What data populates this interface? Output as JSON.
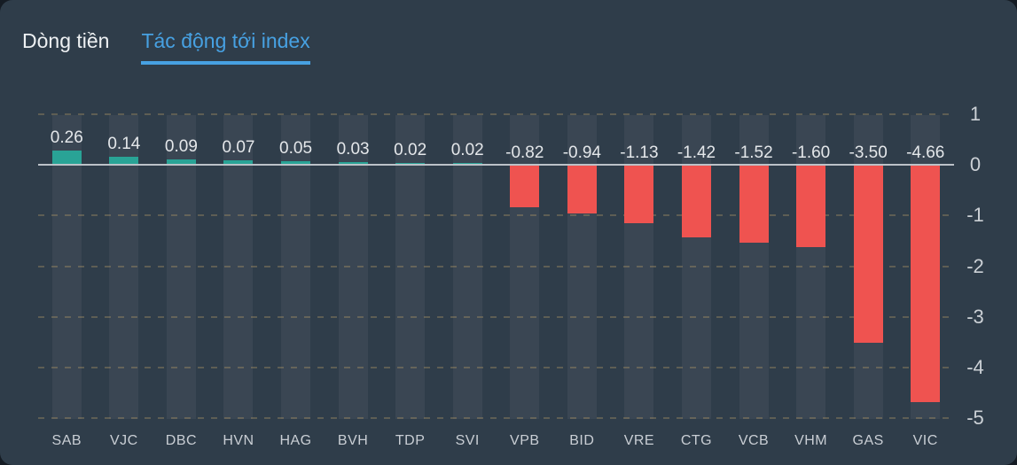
{
  "tabs": {
    "items": [
      {
        "label": "Dòng tiền",
        "active": false
      },
      {
        "label": "Tác động tới index",
        "active": true
      }
    ]
  },
  "chart_data": {
    "type": "bar",
    "title": "Tác động tới index",
    "categories": [
      "SAB",
      "VJC",
      "DBC",
      "HVN",
      "HAG",
      "BVH",
      "TDP",
      "SVI",
      "VPB",
      "BID",
      "VRE",
      "CTG",
      "VCB",
      "VHM",
      "GAS",
      "VIC"
    ],
    "values": [
      0.26,
      0.14,
      0.09,
      0.07,
      0.05,
      0.03,
      0.02,
      0.02,
      -0.82,
      -0.94,
      -1.13,
      -1.42,
      -1.52,
      -1.6,
      -3.5,
      -4.66
    ],
    "value_labels": [
      "0.26",
      "0.14",
      "0.09",
      "0.07",
      "0.05",
      "0.03",
      "0.02",
      "0.02",
      "-0.82",
      "-0.94",
      "-1.13",
      "-1.42",
      "-1.52",
      "-1.60",
      "-3.50",
      "-4.66"
    ],
    "y_ticks": [
      1,
      0,
      -1,
      -2,
      -3,
      -4,
      -5
    ],
    "ylim": [
      -5,
      1
    ],
    "xlabel": "",
    "ylabel": "",
    "legend_position": "none",
    "grid": "horizontal dashed lines, solid line at zero",
    "axis_side": "right"
  },
  "colors": {
    "card_bg": "#2f3d4a",
    "band_bg": "#3a4653",
    "positive": "#29a396",
    "negative": "#ef5350",
    "zero_line": "#bcc2c8",
    "gridline": "rgba(193,162,104,0.32)",
    "tab_active": "#47a1e2",
    "tab_inactive": "#eef1f3",
    "value_label": "#e4e7ea",
    "category_label": "#c9ced4",
    "tick_label": "#ccd1d6"
  }
}
